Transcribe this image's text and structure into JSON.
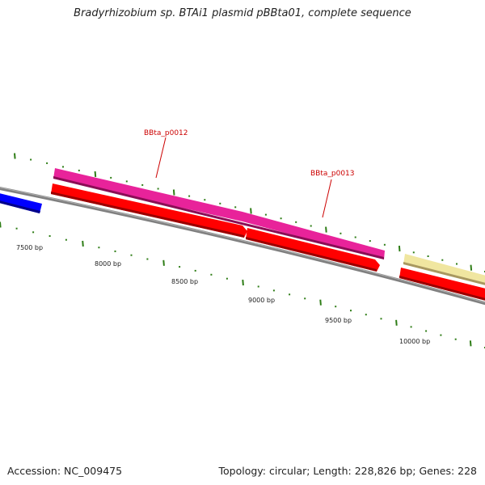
{
  "title": "Bradyrhizobium sp. BTAi1 plasmid pBBta01, complete sequence",
  "accession": "Accession: NC_009475",
  "summary": "Topology: circular; Length: 228,826 bp; Genes: 228",
  "ruler": {
    "labels": [
      "7500 bp",
      "8000 bp",
      "8500 bp",
      "9000 bp",
      "9500 bp",
      "10000 bp"
    ]
  },
  "genes": [
    {
      "name": "BBta_p0012",
      "color": "#e8239a",
      "track": "CDS"
    },
    {
      "name": "BBta_p0013",
      "color": "#e8239a",
      "track": "CDS"
    }
  ],
  "colors": {
    "backbone": "#808080",
    "tick": "#2e7d16",
    "forward_gene": "#ff0000",
    "forward_gene_dark": "#b00000",
    "neighbor_gene": "#0000ff",
    "pseudo": "#f0e6a0",
    "label": "#cc0000"
  }
}
